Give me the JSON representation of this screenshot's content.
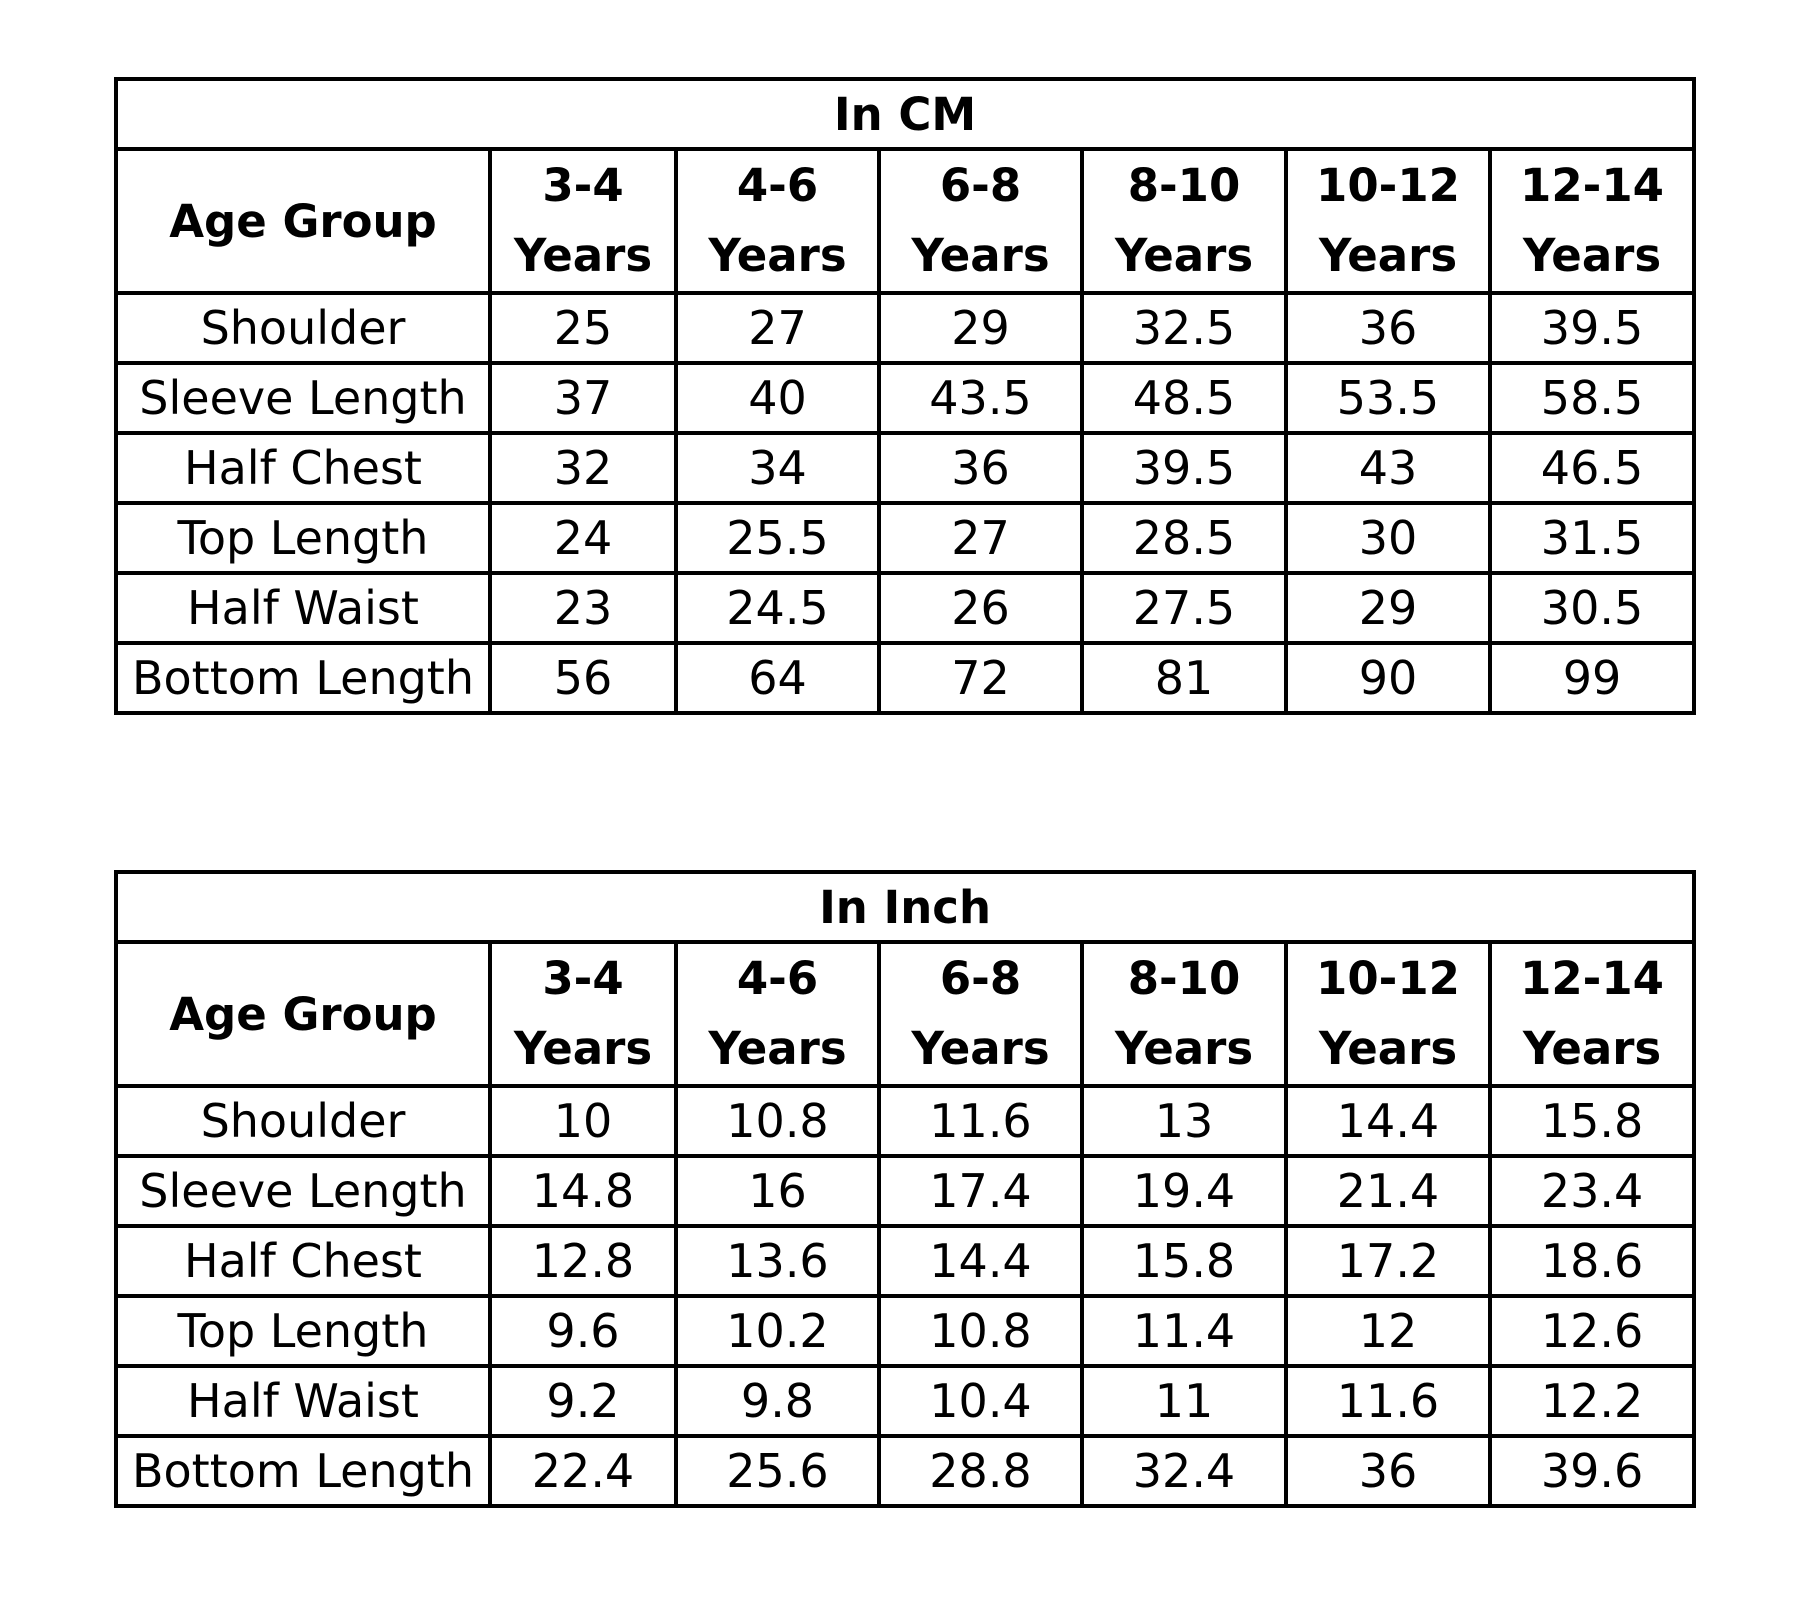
{
  "tables": [
    {
      "title": "In CM",
      "age_group_label": "Age Group",
      "columns": [
        {
          "range": "3-4",
          "unit": "Years"
        },
        {
          "range": "4-6",
          "unit": "Years"
        },
        {
          "range": "6-8",
          "unit": "Years"
        },
        {
          "range": "8-10",
          "unit": "Years"
        },
        {
          "range": "10-12",
          "unit": "Years"
        },
        {
          "range": "12-14",
          "unit": "Years"
        }
      ],
      "rows": [
        {
          "label": "Shoulder",
          "values": [
            "25",
            "27",
            "29",
            "32.5",
            "36",
            "39.5"
          ]
        },
        {
          "label": "Sleeve Length",
          "values": [
            "37",
            "40",
            "43.5",
            "48.5",
            "53.5",
            "58.5"
          ]
        },
        {
          "label": "Half Chest",
          "values": [
            "32",
            "34",
            "36",
            "39.5",
            "43",
            "46.5"
          ]
        },
        {
          "label": "Top Length",
          "values": [
            "24",
            "25.5",
            "27",
            "28.5",
            "30",
            "31.5"
          ]
        },
        {
          "label": "Half Waist",
          "values": [
            "23",
            "24.5",
            "26",
            "27.5",
            "29",
            "30.5"
          ]
        },
        {
          "label": "Bottom Length",
          "values": [
            "56",
            "64",
            "72",
            "81",
            "90",
            "99"
          ]
        }
      ]
    },
    {
      "title": "In Inch",
      "age_group_label": "Age Group",
      "columns": [
        {
          "range": "3-4",
          "unit": "Years"
        },
        {
          "range": "4-6",
          "unit": "Years"
        },
        {
          "range": "6-8",
          "unit": "Years"
        },
        {
          "range": "8-10",
          "unit": "Years"
        },
        {
          "range": "10-12",
          "unit": "Years"
        },
        {
          "range": "12-14",
          "unit": "Years"
        }
      ],
      "rows": [
        {
          "label": "Shoulder",
          "values": [
            "10",
            "10.8",
            "11.6",
            "13",
            "14.4",
            "15.8"
          ]
        },
        {
          "label": "Sleeve Length",
          "values": [
            "14.8",
            "16",
            "17.4",
            "19.4",
            "21.4",
            "23.4"
          ]
        },
        {
          "label": "Half Chest",
          "values": [
            "12.8",
            "13.6",
            "14.4",
            "15.8",
            "17.2",
            "18.6"
          ]
        },
        {
          "label": "Top Length",
          "values": [
            "9.6",
            "10.2",
            "10.8",
            "11.4",
            "12",
            "12.6"
          ]
        },
        {
          "label": "Half Waist",
          "values": [
            "9.2",
            "9.8",
            "10.4",
            "11",
            "11.6",
            "12.2"
          ]
        },
        {
          "label": "Bottom Length",
          "values": [
            "22.4",
            "25.6",
            "28.8",
            "32.4",
            "36",
            "39.6"
          ]
        }
      ]
    }
  ]
}
